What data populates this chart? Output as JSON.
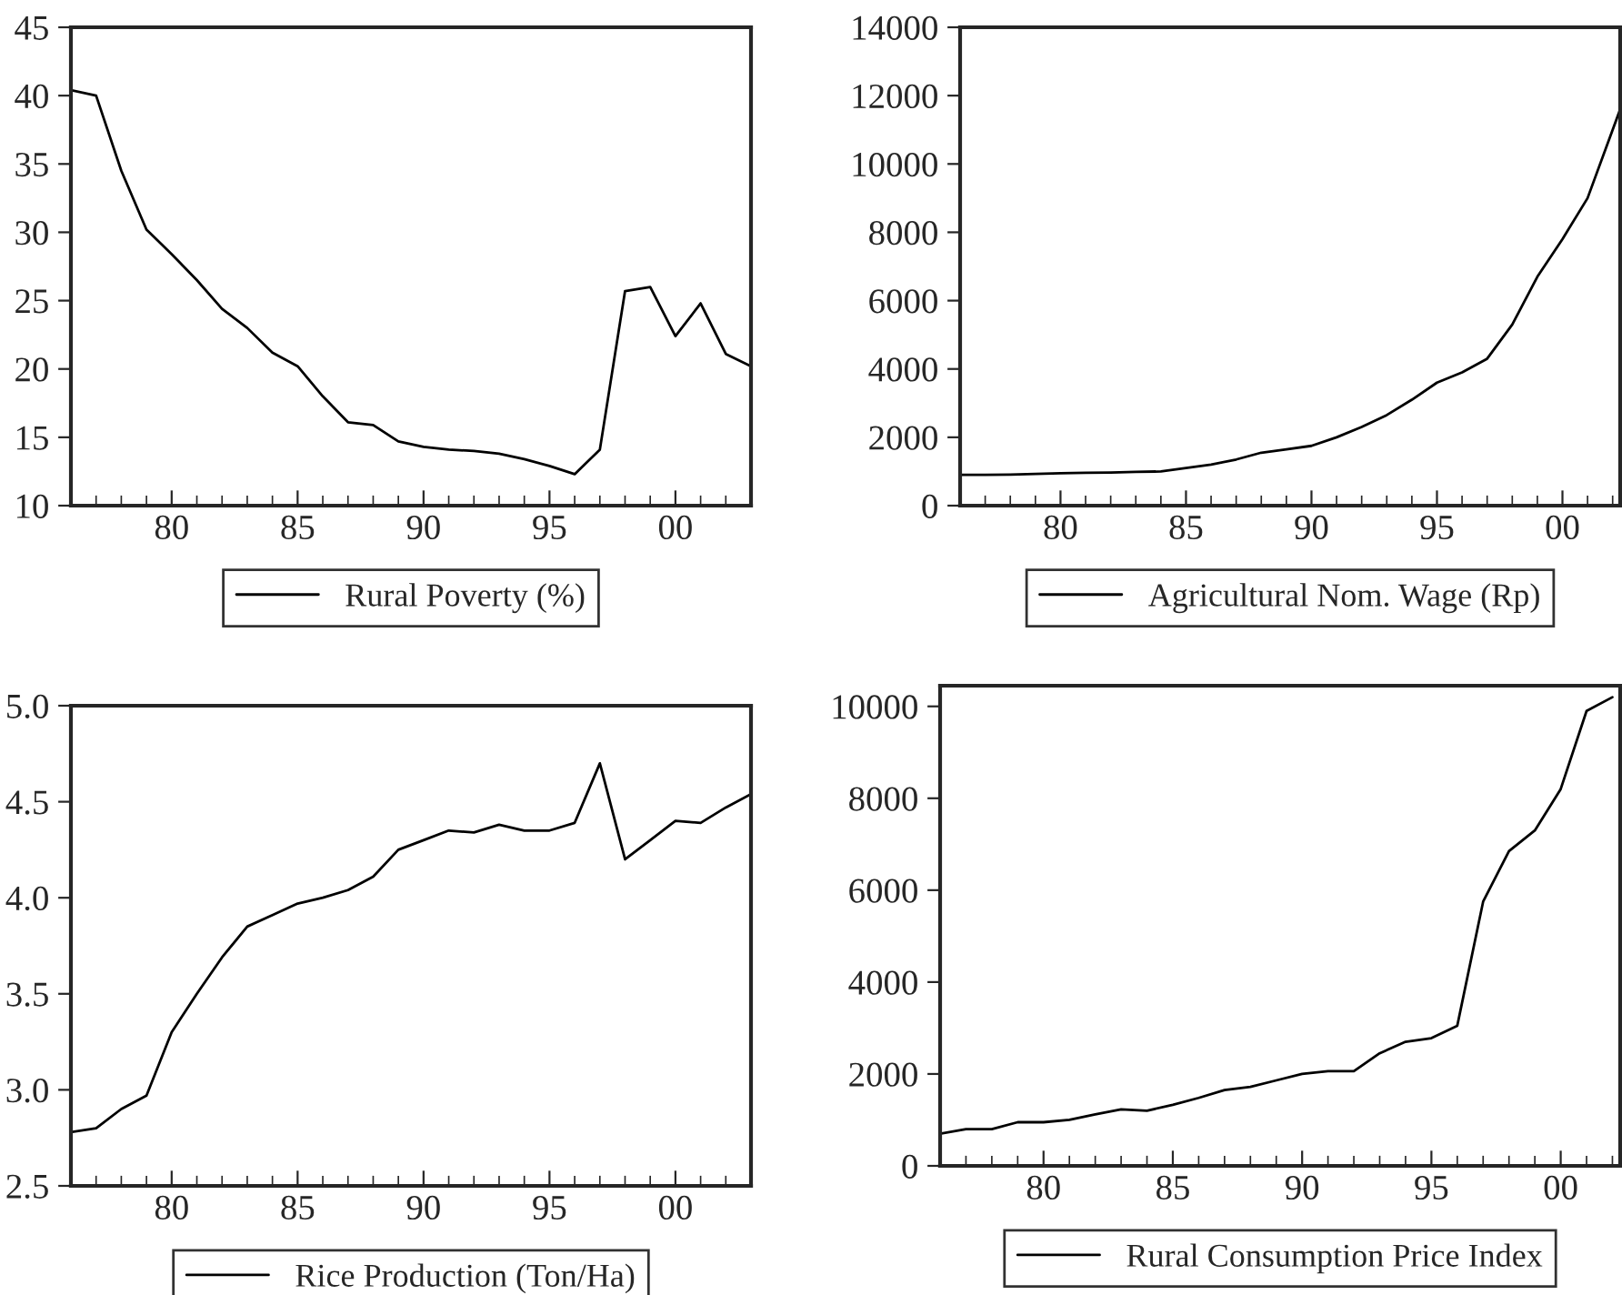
{
  "chart_data": [
    {
      "type": "line",
      "x": [
        1976,
        1977,
        1978,
        1979,
        1980,
        1981,
        1982,
        1983,
        1984,
        1985,
        1986,
        1987,
        1988,
        1989,
        1990,
        1991,
        1992,
        1993,
        1994,
        1995,
        1996,
        1997,
        1998,
        1999,
        2000,
        2001,
        2002,
        2003
      ],
      "series": [
        {
          "name": "Rural Poverty (%)",
          "color": "#000000",
          "values": [
            40.4,
            40.0,
            34.5,
            30.2,
            28.4,
            26.5,
            24.4,
            23.0,
            21.2,
            20.2,
            18.0,
            16.1,
            15.9,
            14.7,
            14.3,
            14.1,
            14.0,
            13.8,
            13.4,
            12.9,
            12.3,
            14.1,
            25.7,
            26.0,
            22.4,
            24.8,
            21.1,
            20.2
          ]
        }
      ],
      "xlim": [
        1976,
        2003
      ],
      "xticks": [
        {
          "value": 1980,
          "label": "80"
        },
        {
          "value": 1985,
          "label": "85"
        },
        {
          "value": 1990,
          "label": "90"
        },
        {
          "value": 1995,
          "label": "95"
        },
        {
          "value": 2000,
          "label": "00"
        }
      ],
      "ylim": [
        10,
        45
      ],
      "yticks": [
        10,
        15,
        20,
        25,
        30,
        35,
        40,
        45
      ],
      "legend": "bottom"
    },
    {
      "type": "line",
      "x": [
        1976,
        1977,
        1978,
        1979,
        1980,
        1981,
        1982,
        1983,
        1984,
        1985,
        1986,
        1987,
        1988,
        1989,
        1990,
        1991,
        1992,
        1993,
        1994,
        1995,
        1996,
        1997,
        1998,
        1999,
        2000,
        2001,
        2002,
        2002.3
      ],
      "series": [
        {
          "name": "Agricultural Nom. Wage (Rp)",
          "color": "#000000",
          "values": [
            900,
            900,
            910,
            930,
            950,
            960,
            970,
            990,
            1000,
            1100,
            1200,
            1350,
            1550,
            1650,
            1750,
            2000,
            2300,
            2650,
            3100,
            3600,
            3900,
            4300,
            5300,
            6700,
            7800,
            9000,
            11000,
            11600
          ]
        }
      ],
      "xlim": [
        1976,
        2002.3
      ],
      "xticks": [
        {
          "value": 1980,
          "label": "80"
        },
        {
          "value": 1985,
          "label": "85"
        },
        {
          "value": 1990,
          "label": "90"
        },
        {
          "value": 1995,
          "label": "95"
        },
        {
          "value": 2000,
          "label": "00"
        }
      ],
      "ylim": [
        0,
        14000
      ],
      "yticks": [
        0,
        2000,
        4000,
        6000,
        8000,
        10000,
        12000,
        14000
      ],
      "legend": "bottom"
    },
    {
      "type": "line",
      "x": [
        1976,
        1977,
        1978,
        1979,
        1980,
        1981,
        1982,
        1983,
        1984,
        1985,
        1986,
        1987,
        1988,
        1989,
        1990,
        1991,
        1992,
        1993,
        1994,
        1995,
        1996,
        1997,
        1998,
        1999,
        2000,
        2001,
        2002,
        2003
      ],
      "series": [
        {
          "name": "Rice Production (Ton/Ha)",
          "color": "#000000",
          "values": [
            2.78,
            2.8,
            2.9,
            2.97,
            3.3,
            3.5,
            3.69,
            3.85,
            3.91,
            3.97,
            4.0,
            4.04,
            4.11,
            4.25,
            4.3,
            4.35,
            4.34,
            4.38,
            4.35,
            4.35,
            4.39,
            4.7,
            4.2,
            4.3,
            4.4,
            4.39,
            4.47,
            4.54
          ]
        }
      ],
      "xlim": [
        1976,
        2003
      ],
      "xticks": [
        {
          "value": 1980,
          "label": "80"
        },
        {
          "value": 1985,
          "label": "85"
        },
        {
          "value": 1990,
          "label": "90"
        },
        {
          "value": 1995,
          "label": "95"
        },
        {
          "value": 2000,
          "label": "00"
        }
      ],
      "ylim": [
        2.5,
        5.0
      ],
      "yticks": [
        {
          "value": 2.5,
          "label": "2.5"
        },
        {
          "value": 3.0,
          "label": "3.0"
        },
        {
          "value": 3.5,
          "label": "3.5"
        },
        {
          "value": 4.0,
          "label": "4.0"
        },
        {
          "value": 4.5,
          "label": "4.5"
        },
        {
          "value": 5.0,
          "label": "5.0"
        }
      ],
      "legend": "bottom"
    },
    {
      "type": "line",
      "x": [
        1976,
        1977,
        1978,
        1979,
        1980,
        1981,
        1982,
        1983,
        1984,
        1985,
        1986,
        1987,
        1988,
        1989,
        1990,
        1991,
        1992,
        1993,
        1994,
        1995,
        1996,
        1997,
        1998,
        1999,
        2000,
        2001,
        2002
      ],
      "series": [
        {
          "name": "Rural Consumption Price Index",
          "color": "#000000",
          "values": [
            700,
            800,
            800,
            950,
            950,
            1000,
            1120,
            1230,
            1200,
            1330,
            1480,
            1650,
            1720,
            1860,
            2000,
            2060,
            2060,
            2450,
            2700,
            2780,
            3050,
            5750,
            6850,
            7300,
            8200,
            9900,
            10200
          ]
        }
      ],
      "xlim": [
        1976,
        2002.3
      ],
      "xticks": [
        {
          "value": 1980,
          "label": "80"
        },
        {
          "value": 1985,
          "label": "85"
        },
        {
          "value": 1990,
          "label": "90"
        },
        {
          "value": 1995,
          "label": "95"
        },
        {
          "value": 2000,
          "label": "00"
        }
      ],
      "ylim": [
        0,
        10450
      ],
      "yticks": [
        0,
        2000,
        4000,
        6000,
        8000,
        10000
      ],
      "legend": "bottom"
    }
  ]
}
